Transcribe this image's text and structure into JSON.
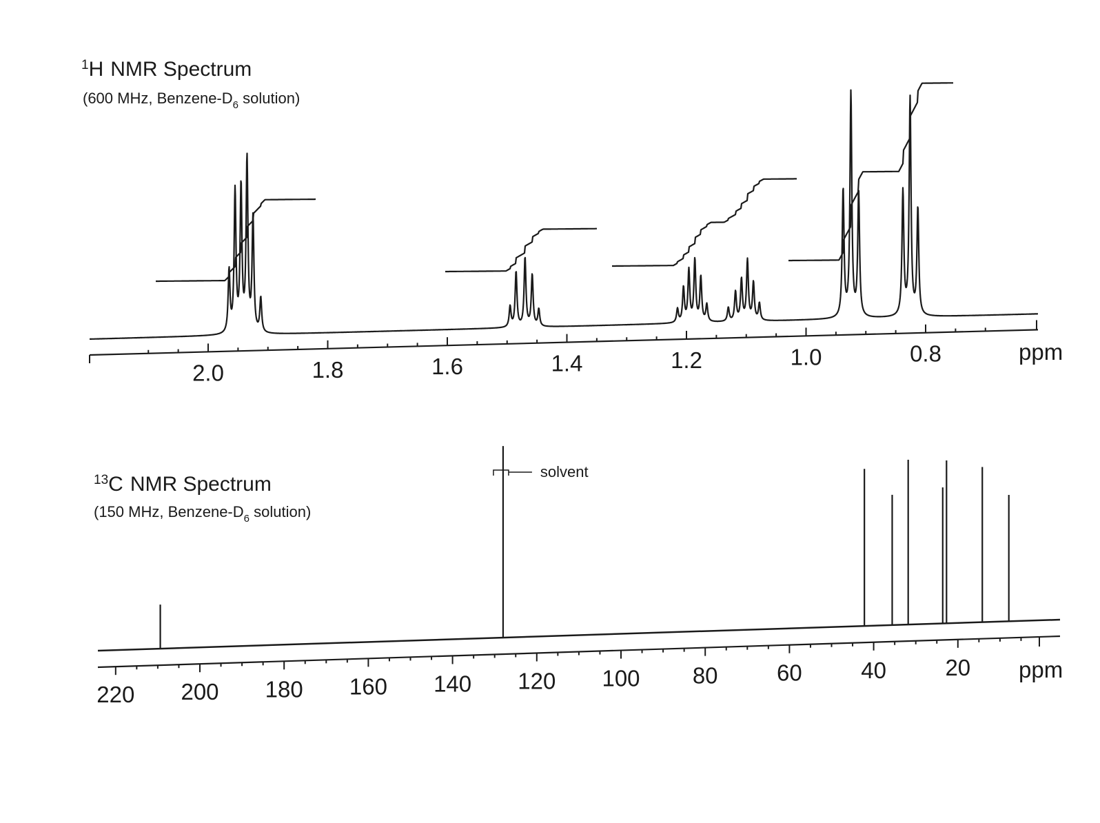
{
  "chart_data": [
    {
      "type": "line",
      "title": "NMR Spectrum",
      "title_superscript": "1",
      "title_nucleus": "H",
      "subtitle_prefix": "(600 MHz, Benzene-D",
      "subtitle_subscript": "6",
      "subtitle_suffix": " solution)",
      "xlabel": "ppm",
      "x_reversed": true,
      "xlim": [
        2.2,
        0.6
      ],
      "ticks": [
        "2.0",
        "1.8",
        "1.6",
        "1.4",
        "1.2",
        "1.0",
        "0.8"
      ],
      "tick_values": [
        2.0,
        1.8,
        1.6,
        1.4,
        1.2,
        1.0,
        0.8
      ],
      "grid": false,
      "multiplets": [
        {
          "center_ppm": 1.935,
          "pattern": "sextet",
          "peaks": [
            {
              "ppm": 1.965,
              "height": 0.36
            },
            {
              "ppm": 1.955,
              "height": 0.82
            },
            {
              "ppm": 1.945,
              "height": 0.84
            },
            {
              "ppm": 1.935,
              "height": 1.0
            },
            {
              "ppm": 1.925,
              "height": 0.66
            },
            {
              "ppm": 1.912,
              "height": 0.2
            }
          ],
          "integral_rise": 0.64
        },
        {
          "center_ppm": 1.47,
          "pattern": "quintet",
          "peaks": [
            {
              "ppm": 1.495,
              "height": 0.12
            },
            {
              "ppm": 1.485,
              "height": 0.32
            },
            {
              "ppm": 1.47,
              "height": 0.4
            },
            {
              "ppm": 1.458,
              "height": 0.3
            },
            {
              "ppm": 1.447,
              "height": 0.1
            }
          ],
          "integral_rise": 0.33
        },
        {
          "center_ppm": 1.19,
          "pattern": "multiplet",
          "peaks": [
            {
              "ppm": 1.215,
              "height": 0.08
            },
            {
              "ppm": 1.205,
              "height": 0.2
            },
            {
              "ppm": 1.196,
              "height": 0.3
            },
            {
              "ppm": 1.186,
              "height": 0.36
            },
            {
              "ppm": 1.176,
              "height": 0.26
            },
            {
              "ppm": 1.166,
              "height": 0.1
            }
          ],
          "integral_rise": 0.34
        },
        {
          "center_ppm": 1.1,
          "pattern": "multiplet",
          "peaks": [
            {
              "ppm": 1.13,
              "height": 0.08
            },
            {
              "ppm": 1.118,
              "height": 0.17
            },
            {
              "ppm": 1.108,
              "height": 0.24
            },
            {
              "ppm": 1.098,
              "height": 0.35
            },
            {
              "ppm": 1.088,
              "height": 0.22
            },
            {
              "ppm": 1.078,
              "height": 0.1
            }
          ],
          "integral_rise": 0.34
        },
        {
          "center_ppm": 0.925,
          "pattern": "triplet",
          "peaks": [
            {
              "ppm": 0.938,
              "height": 0.74
            },
            {
              "ppm": 0.925,
              "height": 1.3
            },
            {
              "ppm": 0.912,
              "height": 0.72
            }
          ],
          "integral_rise": 0.7
        },
        {
          "center_ppm": 0.826,
          "pattern": "triplet",
          "peaks": [
            {
              "ppm": 0.838,
              "height": 0.72
            },
            {
              "ppm": 0.826,
              "height": 1.26
            },
            {
              "ppm": 0.813,
              "height": 0.62
            }
          ],
          "integral_rise": 0.7
        }
      ]
    },
    {
      "type": "line",
      "title": "NMR Spectrum",
      "title_superscript": "13",
      "title_nucleus": "C",
      "subtitle_prefix": "(150 MHz, Benzene-D",
      "subtitle_subscript": "6",
      "subtitle_suffix": " solution)",
      "xlabel": "ppm",
      "x_reversed": true,
      "xlim": [
        222,
        2
      ],
      "ticks": [
        "220",
        "200",
        "180",
        "160",
        "140",
        "120",
        "100",
        "80",
        "60",
        "40",
        "20"
      ],
      "tick_values": [
        220,
        200,
        180,
        160,
        140,
        120,
        100,
        80,
        60,
        40,
        20
      ],
      "grid": false,
      "annotation": {
        "text": "solvent",
        "ppm": 128.0
      },
      "peaks": [
        {
          "ppm": 209.4,
          "height": 0.23
        },
        {
          "ppm": 128.0,
          "height": 1.0
        },
        {
          "ppm": 42.2,
          "height": 0.82
        },
        {
          "ppm": 35.6,
          "height": 0.68
        },
        {
          "ppm": 31.8,
          "height": 0.86
        },
        {
          "ppm": 23.6,
          "height": 0.71
        },
        {
          "ppm": 22.7,
          "height": 0.85
        },
        {
          "ppm": 14.2,
          "height": 0.81
        },
        {
          "ppm": 7.9,
          "height": 0.66
        }
      ]
    }
  ]
}
